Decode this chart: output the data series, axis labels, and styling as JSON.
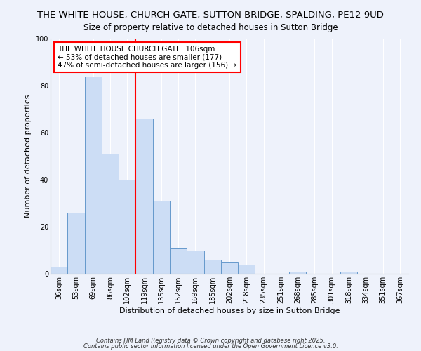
{
  "title": "THE WHITE HOUSE, CHURCH GATE, SUTTON BRIDGE, SPALDING, PE12 9UD",
  "subtitle": "Size of property relative to detached houses in Sutton Bridge",
  "xlabel": "Distribution of detached houses by size in Sutton Bridge",
  "ylabel": "Number of detached properties",
  "bar_labels": [
    "36sqm",
    "53sqm",
    "69sqm",
    "86sqm",
    "102sqm",
    "119sqm",
    "135sqm",
    "152sqm",
    "169sqm",
    "185sqm",
    "202sqm",
    "218sqm",
    "235sqm",
    "251sqm",
    "268sqm",
    "285sqm",
    "301sqm",
    "318sqm",
    "334sqm",
    "351sqm",
    "367sqm"
  ],
  "bar_values": [
    3,
    26,
    84,
    51,
    40,
    66,
    31,
    11,
    10,
    6,
    5,
    4,
    0,
    0,
    1,
    0,
    0,
    1,
    0,
    0,
    0
  ],
  "bar_color": "#ccddf5",
  "bar_edge_color": "#6699cc",
  "vline_x_index": 4,
  "vline_color": "red",
  "annotation_text": "THE WHITE HOUSE CHURCH GATE: 106sqm\n← 53% of detached houses are smaller (177)\n47% of semi-detached houses are larger (156) →",
  "annotation_box_color": "white",
  "annotation_box_edge": "red",
  "ylim": [
    0,
    100
  ],
  "yticks": [
    0,
    20,
    40,
    60,
    80,
    100
  ],
  "background_color": "#eef2fb",
  "grid_color": "#ffffff",
  "footer1": "Contains HM Land Registry data © Crown copyright and database right 2025.",
  "footer2": "Contains public sector information licensed under the Open Government Licence v3.0.",
  "title_fontsize": 9.5,
  "subtitle_fontsize": 8.5,
  "axis_label_fontsize": 8,
  "tick_fontsize": 7,
  "annotation_fontsize": 7.5,
  "footer_fontsize": 6
}
